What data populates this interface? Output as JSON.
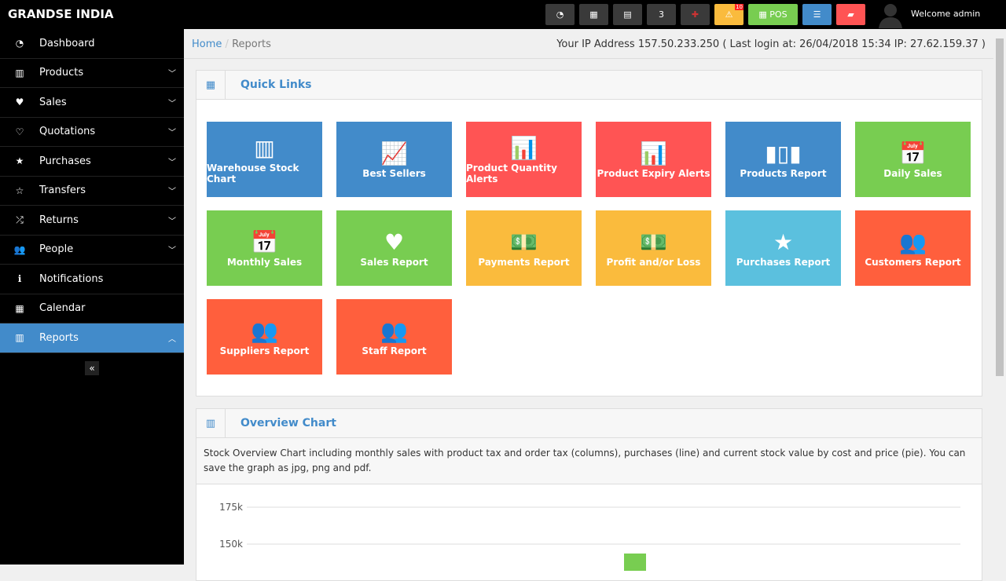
{
  "brand": "GRANDSE INDIA",
  "topbar": {
    "pos_label": "POS",
    "alert_count": "10",
    "welcome": "Welcome admin",
    "buttons": [
      "dashboard-icon",
      "calculator-icon",
      "calendar-icon",
      "css3-icon",
      "flag-uk-icon",
      "warning-icon",
      "pos-button",
      "list-icon",
      "eraser-icon"
    ]
  },
  "sidebar": {
    "items": [
      {
        "label": "Dashboard",
        "icon": "dashboard-icon",
        "chev": false
      },
      {
        "label": "Products",
        "icon": "barcode-icon",
        "chev": true
      },
      {
        "label": "Sales",
        "icon": "heart-icon",
        "chev": true
      },
      {
        "label": "Quotations",
        "icon": "heart-outline-icon",
        "chev": true
      },
      {
        "label": "Purchases",
        "icon": "star-icon",
        "chev": true
      },
      {
        "label": "Transfers",
        "icon": "star-outline-icon",
        "chev": true
      },
      {
        "label": "Returns",
        "icon": "random-icon",
        "chev": true
      },
      {
        "label": "People",
        "icon": "users-icon",
        "chev": true
      },
      {
        "label": "Notifications",
        "icon": "info-icon",
        "chev": false
      },
      {
        "label": "Calendar",
        "icon": "calendar-icon",
        "chev": false
      },
      {
        "label": "Reports",
        "icon": "bar-chart-icon",
        "chev": true,
        "active": true
      }
    ],
    "collapse": "«"
  },
  "breadcrumb": {
    "home": "Home",
    "sep": "/",
    "current": "Reports"
  },
  "ip_text": "Your IP Address 157.50.233.250 ( Last login at: 26/04/2018 15:34 IP: 27.62.159.37 )",
  "quick_links": {
    "title": "Quick Links",
    "tiles": [
      {
        "label": "Warehouse Stock Chart",
        "color": "#428bca",
        "icon": "▥"
      },
      {
        "label": "Best Sellers",
        "color": "#428bca",
        "icon": "📈"
      },
      {
        "label": "Product Quantity Alerts",
        "color": "#ff5454",
        "icon": "📊"
      },
      {
        "label": "Product Expiry Alerts",
        "color": "#ff5454",
        "icon": "📊"
      },
      {
        "label": "Products Report",
        "color": "#428bca",
        "icon": "▮▯▮"
      },
      {
        "label": "Daily Sales",
        "color": "#78cd51",
        "icon": "📅"
      },
      {
        "label": "Monthly Sales",
        "color": "#78cd51",
        "icon": "📅"
      },
      {
        "label": "Sales Report",
        "color": "#78cd51",
        "icon": "♥"
      },
      {
        "label": "Payments Report",
        "color": "#fabb3d",
        "icon": "💵"
      },
      {
        "label": "Profit and/or Loss",
        "color": "#fabb3d",
        "icon": "💵"
      },
      {
        "label": "Purchases Report",
        "color": "#5bc0de",
        "icon": "★"
      },
      {
        "label": "Customers Report",
        "color": "#ff5f3d",
        "icon": "👥"
      },
      {
        "label": "Suppliers Report",
        "color": "#ff5f3d",
        "icon": "👥"
      },
      {
        "label": "Staff Report",
        "color": "#ff5f3d",
        "icon": "👥"
      }
    ]
  },
  "overview": {
    "title": "Overview Chart",
    "description": "Stock Overview Chart including monthly sales with product tax and order tax (columns), purchases (line) and current stock value by cost and price (pie). You can save the graph as jpg, png and pdf."
  },
  "chart_data": {
    "type": "bar",
    "y_ticks": [
      "175k",
      "150k"
    ],
    "grid": true,
    "visible_bar_color": "#78cd51"
  }
}
